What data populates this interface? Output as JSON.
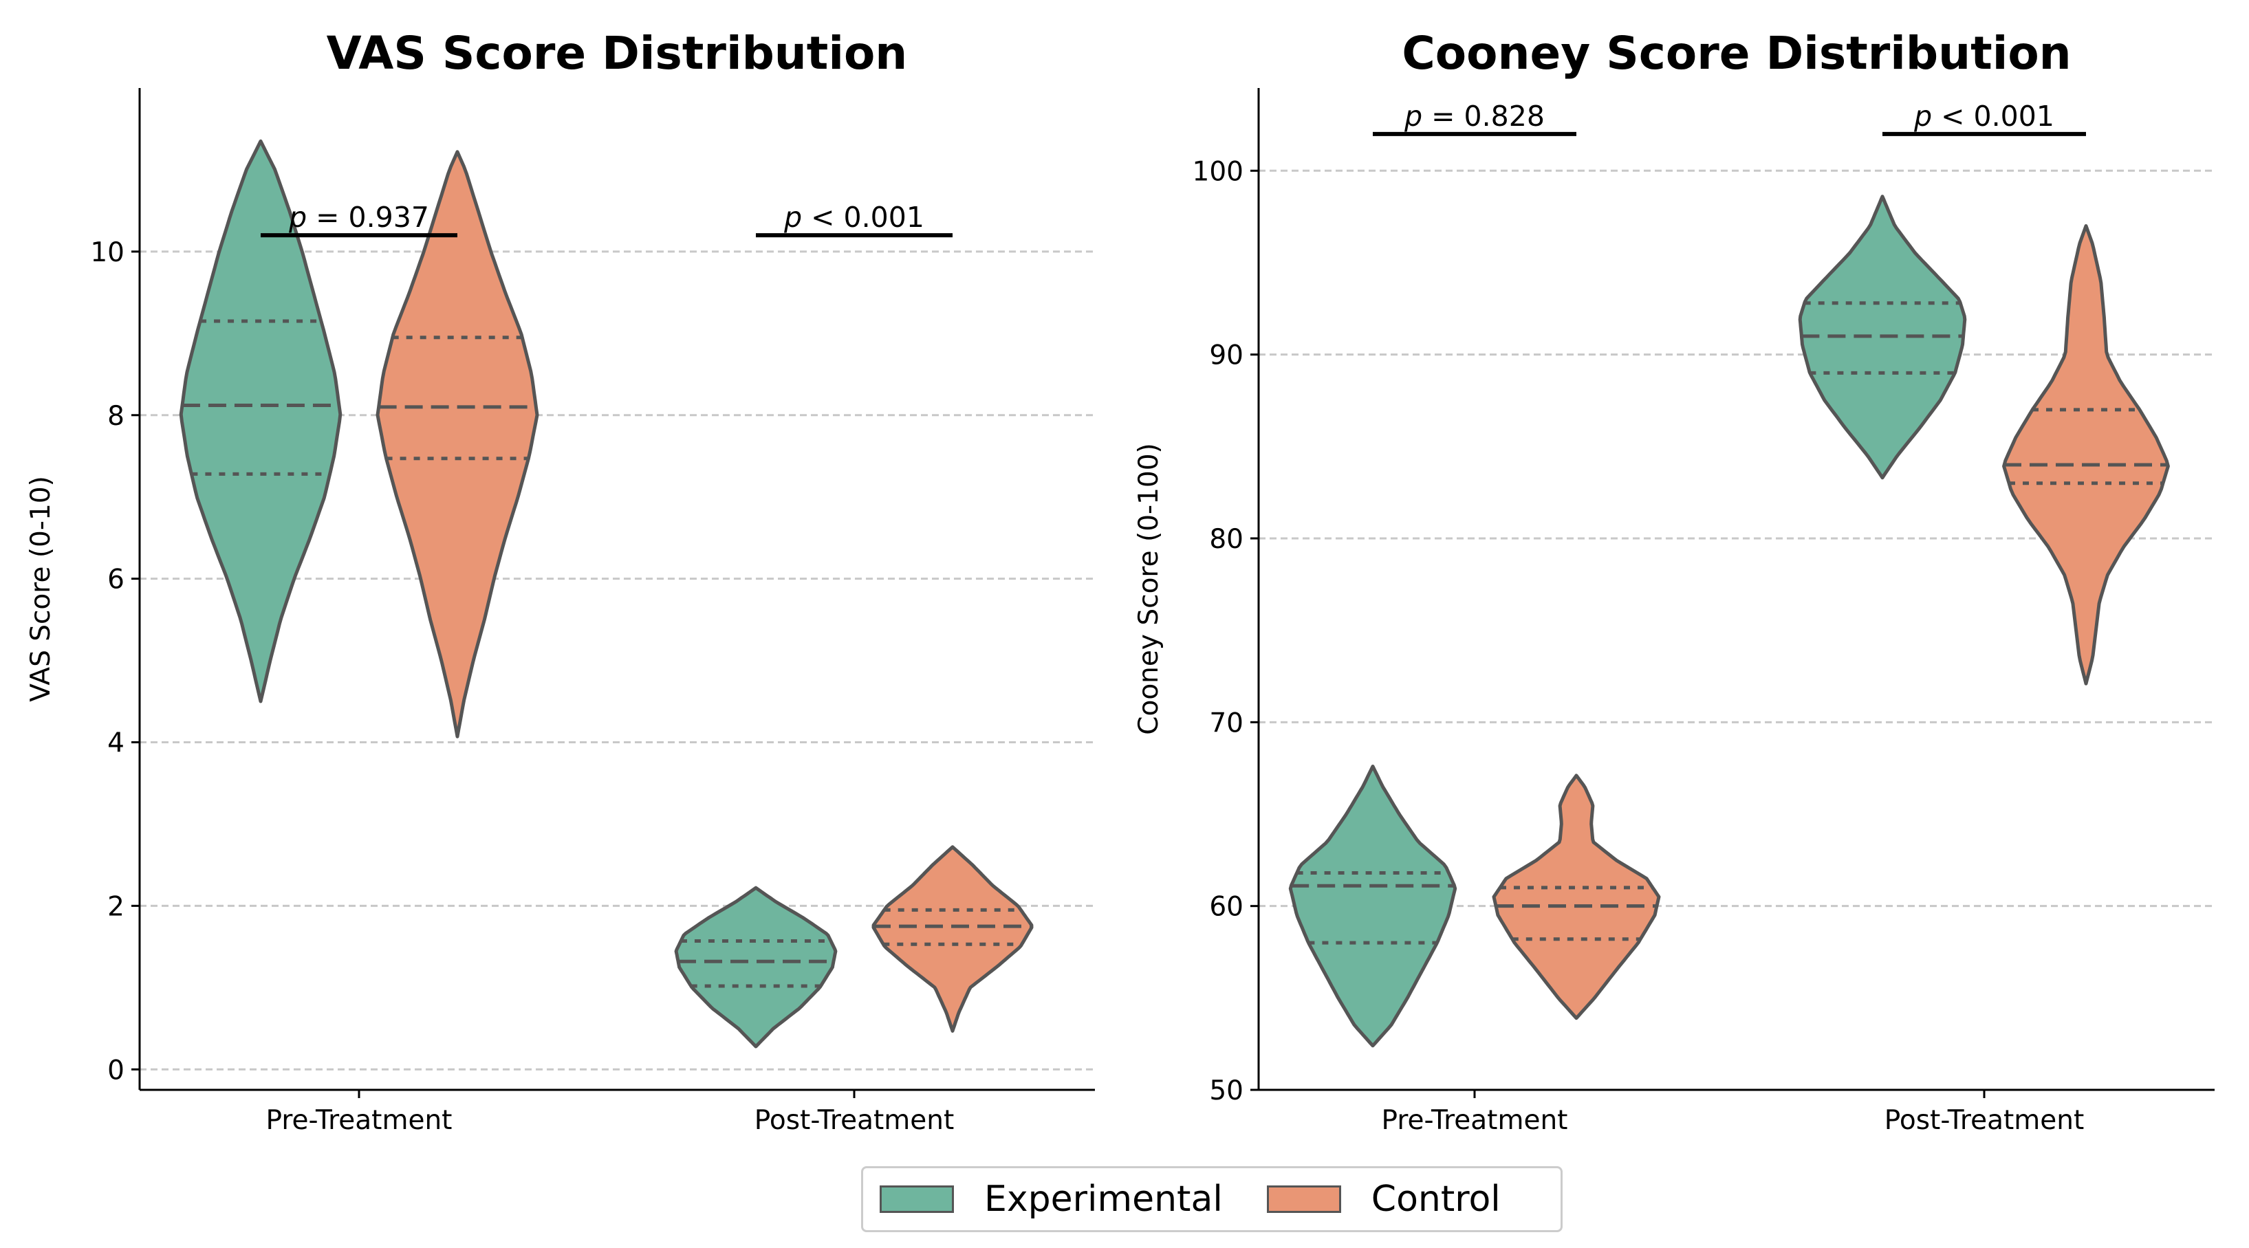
{
  "colors": {
    "experimental": "#6fb59e",
    "control": "#e99675",
    "outline": "#555555"
  },
  "legend": {
    "items": [
      "Experimental",
      "Control"
    ]
  },
  "chart_data": [
    {
      "type": "violin",
      "title": "VAS Score Distribution",
      "xlabel": "",
      "ylabel": "VAS Score (0-10)",
      "ylim": [
        -0.25,
        12.0
      ],
      "yticks": [
        0,
        2,
        4,
        6,
        8,
        10
      ],
      "grid": "y dashed",
      "categories": [
        "Pre-Treatment",
        "Post-Treatment"
      ],
      "series": [
        {
          "name": "Experimental",
          "groups": [
            {
              "category": "Pre-Treatment",
              "min": 4.5,
              "q1": 7.28,
              "median": 8.12,
              "q3": 9.15,
              "max": 11.35,
              "profile": [
                [
                  4.5,
                  0.0
                ],
                [
                  5.0,
                  0.12
                ],
                [
                  5.5,
                  0.25
                ],
                [
                  6.0,
                  0.42
                ],
                [
                  6.5,
                  0.62
                ],
                [
                  7.0,
                  0.8
                ],
                [
                  7.5,
                  0.92
                ],
                [
                  8.0,
                  1.0
                ],
                [
                  8.5,
                  0.93
                ],
                [
                  9.0,
                  0.8
                ],
                [
                  9.5,
                  0.66
                ],
                [
                  10.0,
                  0.52
                ],
                [
                  10.5,
                  0.36
                ],
                [
                  11.0,
                  0.18
                ],
                [
                  11.35,
                  0.0
                ]
              ]
            },
            {
              "category": "Post-Treatment",
              "min": 0.28,
              "q1": 1.02,
              "median": 1.32,
              "q3": 1.57,
              "max": 2.22,
              "profile": [
                [
                  0.28,
                  0.0
                ],
                [
                  0.5,
                  0.22
                ],
                [
                  0.75,
                  0.55
                ],
                [
                  1.0,
                  0.8
                ],
                [
                  1.25,
                  0.96
                ],
                [
                  1.45,
                  1.0
                ],
                [
                  1.65,
                  0.9
                ],
                [
                  1.85,
                  0.6
                ],
                [
                  2.05,
                  0.25
                ],
                [
                  2.22,
                  0.0
                ]
              ]
            }
          ]
        },
        {
          "name": "Control",
          "groups": [
            {
              "category": "Pre-Treatment",
              "min": 4.07,
              "q1": 7.47,
              "median": 8.1,
              "q3": 8.95,
              "max": 11.22,
              "profile": [
                [
                  4.07,
                  0.0
                ],
                [
                  4.5,
                  0.08
                ],
                [
                  5.0,
                  0.2
                ],
                [
                  5.5,
                  0.34
                ],
                [
                  6.0,
                  0.46
                ],
                [
                  6.5,
                  0.6
                ],
                [
                  7.0,
                  0.76
                ],
                [
                  7.5,
                  0.9
                ],
                [
                  8.0,
                  1.0
                ],
                [
                  8.5,
                  0.93
                ],
                [
                  9.0,
                  0.8
                ],
                [
                  9.5,
                  0.6
                ],
                [
                  10.0,
                  0.42
                ],
                [
                  10.5,
                  0.26
                ],
                [
                  11.0,
                  0.1
                ],
                [
                  11.22,
                  0.0
                ]
              ]
            },
            {
              "category": "Post-Treatment",
              "min": 0.47,
              "q1": 1.53,
              "median": 1.75,
              "q3": 1.95,
              "max": 2.72,
              "profile": [
                [
                  0.47,
                  0.0
                ],
                [
                  0.7,
                  0.08
                ],
                [
                  1.0,
                  0.22
                ],
                [
                  1.25,
                  0.55
                ],
                [
                  1.5,
                  0.85
                ],
                [
                  1.75,
                  1.0
                ],
                [
                  2.0,
                  0.82
                ],
                [
                  2.25,
                  0.5
                ],
                [
                  2.5,
                  0.25
                ],
                [
                  2.72,
                  0.0
                ]
              ]
            }
          ]
        }
      ],
      "annotations": [
        {
          "category": "Pre-Treatment",
          "y": 10.2,
          "text": "p = 0.937"
        },
        {
          "category": "Post-Treatment",
          "y": 10.2,
          "text": "p < 0.001"
        }
      ]
    },
    {
      "type": "violin",
      "title": "Cooney Score Distribution",
      "xlabel": "",
      "ylabel": "Cooney Score (0-100)",
      "ylim": [
        50.0,
        104.5
      ],
      "yticks": [
        50,
        60,
        70,
        80,
        90,
        100
      ],
      "grid": "y dashed",
      "categories": [
        "Pre-Treatment",
        "Post-Treatment"
      ],
      "series": [
        {
          "name": "Experimental",
          "groups": [
            {
              "category": "Pre-Treatment",
              "min": 52.4,
              "q1": 58.0,
              "median": 61.1,
              "q3": 61.8,
              "max": 67.6,
              "profile": [
                [
                  52.4,
                  0.0
                ],
                [
                  53.5,
                  0.22
                ],
                [
                  55.0,
                  0.42
                ],
                [
                  56.5,
                  0.6
                ],
                [
                  58.0,
                  0.78
                ],
                [
                  59.5,
                  0.92
                ],
                [
                  61.0,
                  1.0
                ],
                [
                  62.2,
                  0.88
                ],
                [
                  63.5,
                  0.55
                ],
                [
                  65.0,
                  0.32
                ],
                [
                  66.5,
                  0.12
                ],
                [
                  67.6,
                  0.0
                ]
              ]
            },
            {
              "category": "Post-Treatment",
              "min": 83.3,
              "q1": 89.0,
              "median": 91.0,
              "q3": 92.8,
              "max": 98.6,
              "profile": [
                [
                  83.3,
                  0.0
                ],
                [
                  84.5,
                  0.18
                ],
                [
                  86.0,
                  0.45
                ],
                [
                  87.5,
                  0.7
                ],
                [
                  89.0,
                  0.88
                ],
                [
                  90.5,
                  0.97
                ],
                [
                  92.0,
                  1.0
                ],
                [
                  93.0,
                  0.93
                ],
                [
                  94.0,
                  0.72
                ],
                [
                  95.5,
                  0.4
                ],
                [
                  97.0,
                  0.15
                ],
                [
                  98.6,
                  0.0
                ]
              ]
            }
          ]
        },
        {
          "name": "Control",
          "groups": [
            {
              "category": "Pre-Treatment",
              "min": 53.9,
              "q1": 58.2,
              "median": 60.0,
              "q3": 61.0,
              "max": 67.1,
              "profile": [
                [
                  53.9,
                  0.0
                ],
                [
                  55.0,
                  0.22
                ],
                [
                  56.5,
                  0.48
                ],
                [
                  58.0,
                  0.75
                ],
                [
                  59.5,
                  0.95
                ],
                [
                  60.5,
                  1.0
                ],
                [
                  61.5,
                  0.85
                ],
                [
                  62.5,
                  0.48
                ],
                [
                  63.5,
                  0.2
                ],
                [
                  64.5,
                  0.18
                ],
                [
                  65.5,
                  0.2
                ],
                [
                  66.5,
                  0.1
                ],
                [
                  67.1,
                  0.0
                ]
              ]
            },
            {
              "category": "Post-Treatment",
              "min": 72.1,
              "q1": 83.0,
              "median": 84.0,
              "q3": 87.0,
              "max": 97.0,
              "profile": [
                [
                  72.1,
                  0.0
                ],
                [
                  73.5,
                  0.08
                ],
                [
                  75.0,
                  0.12
                ],
                [
                  76.5,
                  0.16
                ],
                [
                  78.0,
                  0.26
                ],
                [
                  79.5,
                  0.45
                ],
                [
                  81.0,
                  0.7
                ],
                [
                  82.5,
                  0.9
                ],
                [
                  84.0,
                  1.0
                ],
                [
                  85.5,
                  0.85
                ],
                [
                  87.0,
                  0.65
                ],
                [
                  88.5,
                  0.42
                ],
                [
                  90.0,
                  0.25
                ],
                [
                  92.0,
                  0.22
                ],
                [
                  94.0,
                  0.18
                ],
                [
                  96.0,
                  0.08
                ],
                [
                  97.0,
                  0.0
                ]
              ]
            }
          ]
        }
      ],
      "annotations": [
        {
          "category": "Pre-Treatment",
          "y": 102.0,
          "text": "p = 0.828"
        },
        {
          "category": "Post-Treatment",
          "y": 102.0,
          "text": "p < 0.001"
        }
      ]
    }
  ]
}
